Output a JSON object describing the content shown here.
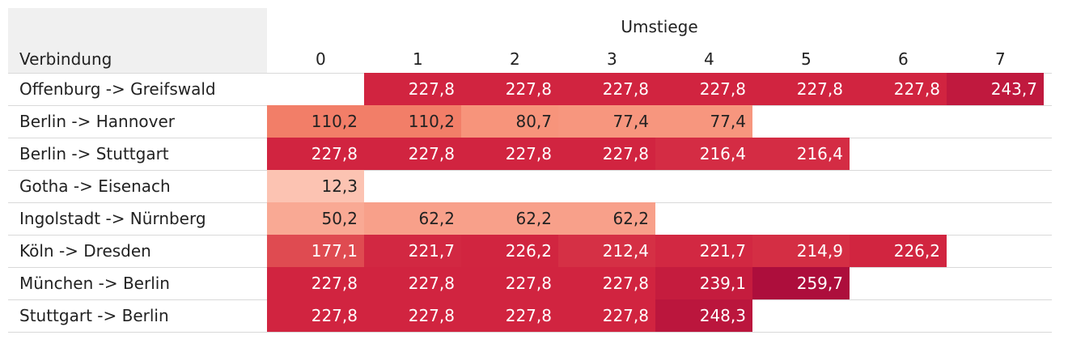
{
  "chart_data": {
    "type": "heatmap",
    "title": "",
    "column_header_title": "Umstiege",
    "row_header_title": "Verbindung",
    "columns": [
      "0",
      "1",
      "2",
      "3",
      "4",
      "5",
      "6",
      "7"
    ],
    "rows": [
      "Offenburg -> Greifswald",
      "Berlin -> Hannover",
      "Berlin -> Stuttgart",
      "Gotha -> Eisenach",
      "Ingolstadt -> Nürnberg",
      "Köln -> Dresden",
      "München -> Berlin",
      "Stuttgart -> Berlin"
    ],
    "values": [
      [
        null,
        227.8,
        227.8,
        227.8,
        227.8,
        227.8,
        227.8,
        243.7
      ],
      [
        110.2,
        110.2,
        80.7,
        77.4,
        77.4,
        null,
        null,
        null
      ],
      [
        227.8,
        227.8,
        227.8,
        227.8,
        216.4,
        216.4,
        null,
        null
      ],
      [
        12.3,
        null,
        null,
        null,
        null,
        null,
        null,
        null
      ],
      [
        50.2,
        62.2,
        62.2,
        62.2,
        null,
        null,
        null,
        null
      ],
      [
        177.1,
        221.7,
        226.2,
        212.4,
        221.7,
        214.9,
        226.2,
        null
      ],
      [
        227.8,
        227.8,
        227.8,
        227.8,
        239.1,
        259.7,
        null,
        null
      ],
      [
        227.8,
        227.8,
        227.8,
        227.8,
        248.3,
        null,
        null,
        null
      ]
    ],
    "color_scale": {
      "low": "#fcc5b4",
      "mid": "#f5866c",
      "high": "#d0223f",
      "max": "#ad0e3c"
    }
  }
}
